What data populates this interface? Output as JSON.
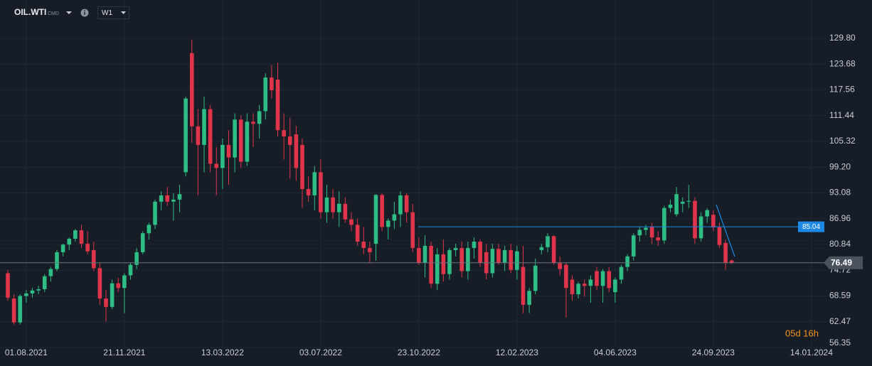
{
  "chart_data": {
    "type": "candlestick",
    "symbol": "OIL.WTI",
    "market": "CMD",
    "timeframe": "W1",
    "countdown": "05d 16h",
    "categories": [
      null,
      null,
      null,
      "01.08.2021",
      null,
      null,
      null,
      null,
      null,
      null,
      null,
      null,
      null,
      null,
      null,
      null,
      null,
      null,
      null,
      "21.11.2021",
      null,
      null,
      null,
      null,
      null,
      null,
      null,
      null,
      null,
      null,
      null,
      null,
      null,
      null,
      null,
      "13.03.2022",
      null,
      null,
      null,
      null,
      null,
      null,
      null,
      null,
      null,
      null,
      null,
      null,
      null,
      null,
      null,
      "03.07.2022",
      null,
      null,
      null,
      null,
      null,
      null,
      null,
      null,
      null,
      null,
      null,
      null,
      null,
      null,
      null,
      "23.10.2022",
      null,
      null,
      null,
      null,
      null,
      null,
      null,
      null,
      null,
      null,
      null,
      null,
      null,
      null,
      null,
      "12.02.2023",
      null,
      null,
      null,
      null,
      null,
      null,
      null,
      null,
      null,
      null,
      null,
      null,
      null,
      null,
      null,
      "04.06.2023",
      null,
      null,
      null,
      null,
      null,
      null,
      null,
      null,
      null,
      null,
      null,
      null,
      null,
      null,
      null,
      "24.09.2023",
      null,
      null,
      null,
      null,
      null,
      null,
      null,
      null,
      null,
      null,
      null,
      null,
      null,
      null,
      null,
      "14.01.2024",
      null,
      null
    ],
    "open": [
      74.0,
      68.0,
      62.3,
      68.6,
      69.2,
      69.9,
      70.2,
      73.3,
      75.0,
      79.0,
      80.8,
      82.2,
      84.2,
      81.0,
      79.5,
      75.2,
      68.0,
      66.0,
      71.6,
      70.5,
      73.5,
      76.0,
      79.0,
      83.5,
      85.5,
      91.0,
      92.5,
      91.0,
      91.5,
      98.0,
      126.3,
      108.9,
      104.5,
      113.0,
      100.0,
      99.0,
      104.5,
      101.5,
      110.5,
      100.5,
      110.0,
      109.5,
      112.5,
      120.5,
      120.0,
      108.0,
      106.5,
      107.0,
      104.5,
      94.0,
      92.5,
      98.0,
      88.5,
      92.0,
      88.5,
      90.5,
      86.8,
      85.5,
      81.5,
      80.0,
      81.0,
      92.6,
      85.0,
      86.5,
      88.0,
      92.5,
      88.5,
      80.0,
      76.5,
      80.5,
      71.5,
      78.5,
      73.8,
      79.5,
      80.0,
      74.5,
      80.0,
      81.5,
      79.0,
      74.0,
      79.8,
      76.5,
      79.5,
      74.8,
      75.5,
      66.5,
      69.8,
      79.5,
      80.2,
      82.8,
      76.5,
      76.0,
      72.5,
      69.0,
      71.5,
      71.0,
      74.5,
      71.0,
      74.5,
      69.5,
      72.5,
      75.5,
      78.0,
      83.0,
      84.3,
      85.0,
      82.5,
      81.8,
      89.5,
      88.0,
      90.5,
      91.0,
      91.2,
      82.3,
      87.5,
      87.9,
      84.9,
      81.2,
      77.0,
      null,
      null,
      null,
      null,
      null,
      null,
      null,
      null,
      null,
      null,
      null,
      null,
      null,
      null,
      null
    ],
    "high": [
      74.8,
      69.0,
      69.0,
      70.0,
      70.5,
      71.0,
      73.8,
      75.5,
      79.5,
      81.0,
      82.5,
      84.5,
      85.5,
      84.0,
      81.5,
      76.5,
      70.0,
      72.5,
      73.0,
      74.0,
      76.5,
      80.0,
      84.0,
      86.0,
      91.5,
      93.5,
      94.5,
      93.0,
      95.0,
      116.0,
      129.5,
      113.0,
      116.0,
      114.0,
      104.0,
      106.0,
      108.0,
      112.0,
      111.5,
      112.0,
      112.0,
      114.0,
      121.5,
      123.5,
      124.0,
      112.0,
      111.0,
      109.0,
      106.0,
      97.0,
      99.5,
      101.0,
      95.0,
      94.0,
      93.5,
      92.0,
      88.5,
      87.0,
      85.0,
      81.5,
      92.8,
      93.0,
      87.0,
      91.0,
      93.5,
      93.0,
      90.5,
      82.5,
      83.0,
      81.5,
      80.0,
      82.0,
      80.0,
      81.0,
      81.5,
      81.5,
      82.5,
      82.0,
      81.0,
      81.0,
      81.0,
      80.5,
      81.0,
      80.5,
      80.5,
      70.5,
      77.5,
      81.0,
      83.5,
      83.0,
      78.0,
      76.5,
      73.5,
      72.0,
      72.5,
      73.5,
      75.5,
      75.0,
      75.5,
      73.0,
      76.0,
      78.5,
      83.5,
      85.0,
      85.5,
      86.0,
      84.0,
      90.0,
      91.5,
      94.5,
      92.0,
      95.0,
      92.0,
      88.5,
      89.5,
      89.0,
      86.0,
      82.0,
      77.3,
      null,
      null,
      null,
      null,
      null,
      null,
      null,
      null,
      null,
      null,
      null,
      null,
      null,
      null,
      null
    ],
    "low": [
      67.5,
      61.8,
      61.8,
      67.0,
      68.2,
      69.0,
      69.5,
      72.0,
      74.5,
      78.0,
      79.5,
      81.5,
      80.0,
      78.5,
      74.5,
      66.5,
      62.5,
      65.5,
      69.5,
      64.5,
      72.5,
      75.0,
      78.5,
      82.0,
      84.5,
      89.0,
      90.0,
      86.5,
      88.5,
      97.0,
      105.0,
      92.5,
      98.0,
      98.0,
      92.5,
      94.0,
      95.0,
      98.0,
      99.0,
      99.5,
      104.0,
      106.0,
      110.5,
      115.5,
      106.5,
      101.0,
      96.5,
      96.0,
      89.5,
      91.0,
      89.0,
      87.0,
      86.0,
      87.0,
      85.0,
      86.0,
      84.0,
      80.5,
      78.5,
      76.5,
      77.0,
      84.0,
      82.0,
      84.5,
      85.0,
      86.0,
      79.0,
      76.0,
      73.0,
      70.5,
      70.0,
      72.0,
      72.5,
      78.0,
      73.0,
      72.5,
      77.5,
      75.5,
      72.5,
      73.0,
      76.0,
      74.5,
      74.0,
      72.5,
      64.5,
      64.5,
      69.0,
      78.5,
      79.0,
      76.0,
      73.5,
      63.5,
      67.5,
      68.0,
      68.5,
      67.0,
      70.0,
      67.0,
      69.5,
      67.0,
      71.5,
      74.5,
      77.0,
      81.5,
      83.0,
      81.0,
      80.5,
      81.0,
      88.5,
      87.5,
      88.5,
      89.5,
      81.0,
      81.5,
      86.0,
      84.0,
      80.0,
      74.8,
      76.2,
      null,
      null,
      null,
      null,
      null,
      null,
      null,
      null,
      null,
      null,
      null,
      null,
      null,
      null,
      null
    ],
    "close": [
      68.2,
      62.3,
      68.6,
      69.2,
      69.9,
      70.2,
      73.3,
      75.0,
      79.0,
      80.8,
      82.2,
      84.2,
      81.0,
      79.2,
      75.2,
      68.0,
      66.0,
      71.6,
      70.5,
      73.5,
      76.0,
      79.0,
      83.5,
      85.5,
      91.0,
      92.5,
      91.0,
      91.5,
      92.8,
      115.5,
      108.9,
      104.5,
      113.0,
      100.0,
      99.0,
      104.5,
      101.5,
      110.5,
      100.5,
      110.0,
      109.5,
      112.5,
      120.5,
      117.5,
      108.0,
      106.5,
      104.5,
      99.0,
      94.0,
      92.5,
      98.0,
      88.5,
      92.0,
      88.5,
      90.5,
      86.8,
      85.5,
      81.5,
      80.0,
      79.0,
      92.6,
      85.0,
      86.5,
      88.0,
      92.5,
      88.5,
      80.0,
      76.5,
      80.5,
      71.5,
      78.5,
      73.8,
      79.5,
      80.0,
      74.5,
      80.0,
      81.5,
      76.5,
      74.0,
      79.8,
      76.5,
      79.5,
      74.8,
      79.2,
      66.5,
      69.8,
      75.8,
      80.2,
      82.8,
      76.5,
      75.0,
      70.5,
      69.0,
      71.5,
      71.0,
      72.5,
      71.0,
      74.5,
      70.5,
      72.5,
      75.5,
      78.0,
      83.0,
      84.3,
      84.8,
      82.5,
      81.8,
      89.5,
      90.3,
      92.8,
      91.0,
      91.2,
      82.3,
      87.5,
      89.0,
      84.9,
      80.7,
      76.5,
      76.49,
      null,
      null,
      null,
      null,
      null,
      null,
      null,
      null,
      null,
      null,
      null,
      null,
      null,
      null,
      null
    ],
    "up_color": "#2ebd85",
    "down_color": "#e0344a",
    "ylim": [
      56.35,
      137.57
    ],
    "yticks": [
      {
        "value": 129.8,
        "label": "129.80"
      },
      123.68,
      117.56,
      111.44,
      105.32,
      {
        "value": 99.2,
        "label": "99.20"
      },
      93.08,
      86.96,
      80.84,
      74.72,
      68.59,
      62.47,
      56.35
    ],
    "grid": true,
    "hline": {
      "value": 85.04,
      "color": "#1e88e5"
    },
    "last_price": 76.49
  }
}
